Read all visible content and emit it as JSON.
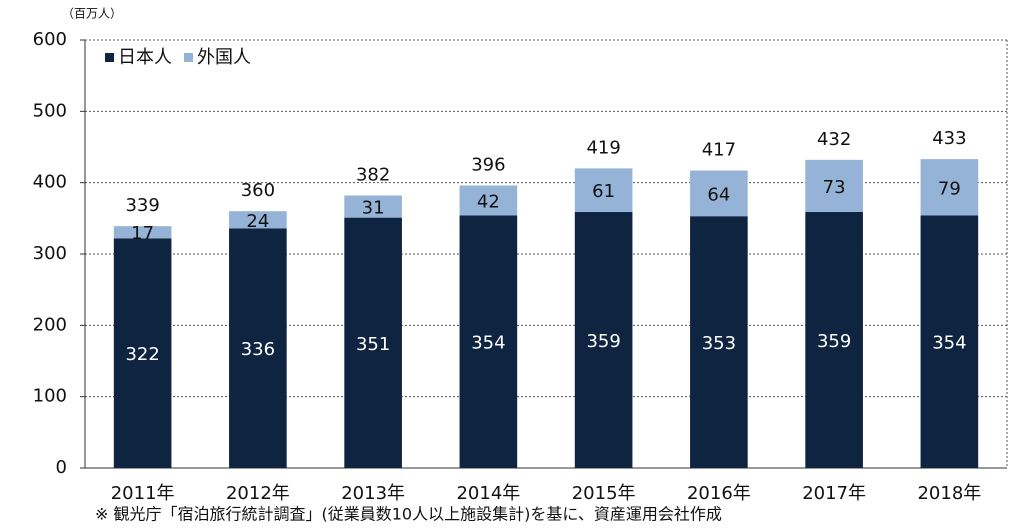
{
  "chart_data": {
    "type": "stacked_bar",
    "y_unit": "（百万人）",
    "categories": [
      "2011年",
      "2012年",
      "2013年",
      "2014年",
      "2015年",
      "2016年",
      "2017年",
      "2018年"
    ],
    "series": [
      {
        "name": "日本人",
        "color": "#0e2441",
        "values": [
          322,
          336,
          351,
          354,
          359,
          353,
          359,
          354
        ]
      },
      {
        "name": "外国人",
        "color": "#95b3d7",
        "values": [
          17,
          24,
          31,
          42,
          61,
          64,
          73,
          79
        ]
      }
    ],
    "totals": [
      339,
      360,
      382,
      396,
      419,
      417,
      432,
      433
    ],
    "ylim": [
      0,
      600
    ],
    "yticks": [
      0,
      100,
      200,
      300,
      400,
      500,
      600
    ],
    "grid": true,
    "legend": "upper left",
    "note": "※ 観光庁「宿泊旅行統計調査」(従業員数10人以上施設集計)を基に、資産運用会社作成"
  }
}
